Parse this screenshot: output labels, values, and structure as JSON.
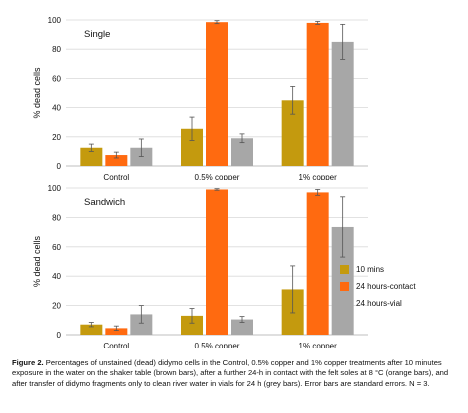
{
  "colors": {
    "10 mins": "#c49a0e",
    "24 hours-contact": "#ff6a10",
    "24 hours-vial": "#a7a7a7"
  },
  "legend": {
    "items": [
      {
        "label": "10 mins",
        "color": "#c49a0e"
      },
      {
        "label": "24 hours-contact",
        "color": "#ff6a10"
      },
      {
        "label": "24 hours-vial",
        "color": "#a7a7a7"
      }
    ]
  },
  "caption": {
    "label": "Figure 2.",
    "text": "Percentages of unstained (dead) didymo cells in the Control, 0.5% copper and 1% copper treatments after 10 minutes exposure in the water on the shaker table (brown bars), after a further 24-h in contact with the felt soles at 8 °C (orange bars), and after transfer of didymo fragments only to clean river water in vials for 24 h (grey bars). Error bars are standard errors. N = 3."
  },
  "chart_data": [
    {
      "type": "bar",
      "title": "Single",
      "ylabel": "% dead cells",
      "xlabel": "",
      "ylim": [
        0,
        100
      ],
      "yticks": [
        0,
        20,
        40,
        60,
        80,
        100
      ],
      "categories": [
        "Control",
        "0.5% copper",
        "1% copper"
      ],
      "series": [
        {
          "name": "10 mins",
          "values": [
            12.5,
            25.5,
            45
          ],
          "errors": [
            2.5,
            8,
            9.5
          ]
        },
        {
          "name": "24 hours-contact",
          "values": [
            7.5,
            98.5,
            98
          ],
          "errors": [
            2,
            1,
            1
          ]
        },
        {
          "name": "24 hours-vial",
          "values": [
            12.5,
            19,
            85
          ],
          "errors": [
            6,
            3,
            12
          ]
        }
      ]
    },
    {
      "type": "bar",
      "title": "Sandwich",
      "ylabel": "% dead cells",
      "xlabel": "",
      "ylim": [
        0,
        100
      ],
      "yticks": [
        0,
        20,
        40,
        60,
        80,
        100
      ],
      "categories": [
        "Control",
        "0.5% copper",
        "1% copper"
      ],
      "series": [
        {
          "name": "10 mins",
          "values": [
            7,
            13,
            31
          ],
          "errors": [
            1.5,
            5,
            16
          ]
        },
        {
          "name": "24 hours-contact",
          "values": [
            4.5,
            99,
            97
          ],
          "errors": [
            1.5,
            0.5,
            2
          ]
        },
        {
          "name": "24 hours-vial",
          "values": [
            14,
            10.5,
            73.5
          ],
          "errors": [
            6,
            2,
            20.5
          ]
        }
      ]
    }
  ]
}
